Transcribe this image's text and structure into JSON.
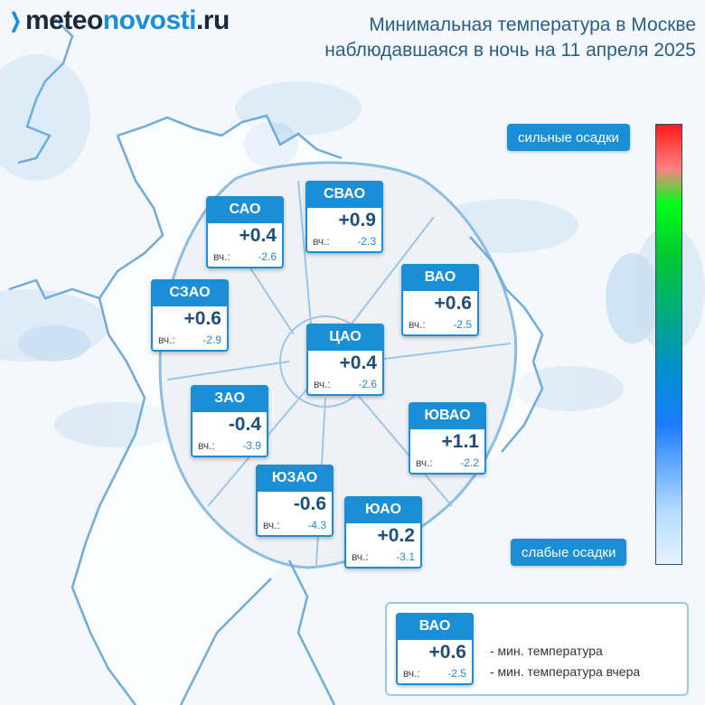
{
  "logo": {
    "part1": "meteo",
    "part2": "novosti",
    "part3": ".ru"
  },
  "title": {
    "line1": "Минимальная температура в Москве",
    "line2": "наблюдавшаяся в ночь на 11 апреля 2025"
  },
  "yesterday_label": "вч.:",
  "districts": [
    {
      "name": "САО",
      "temp": "+0.4",
      "yesterday": "-2.6"
    },
    {
      "name": "СВАО",
      "temp": "+0.9",
      "yesterday": "-2.3"
    },
    {
      "name": "ВАО",
      "temp": "+0.6",
      "yesterday": "-2.5"
    },
    {
      "name": "СЗАО",
      "temp": "+0.6",
      "yesterday": "-2.9"
    },
    {
      "name": "ЦАО",
      "temp": "+0.4",
      "yesterday": "-2.6"
    },
    {
      "name": "ЗАО",
      "temp": "-0.4",
      "yesterday": "-3.9"
    },
    {
      "name": "ЮВАО",
      "temp": "+1.1",
      "yesterday": "-2.2"
    },
    {
      "name": "ЮЗАО",
      "temp": "-0.6",
      "yesterday": "-4.3"
    },
    {
      "name": "ЮАО",
      "temp": "+0.2",
      "yesterday": "-3.1"
    }
  ],
  "precip_scale": {
    "top_label": "сильные осадки",
    "bottom_label": "слабые осадки",
    "colors": [
      "#ff1a1a",
      "#ff8080",
      "#00ff1a",
      "#00c832",
      "#0090c8",
      "#1a7cff",
      "#b4dcff",
      "#e6f2ff"
    ]
  },
  "legend": {
    "example": {
      "name": "ВАО",
      "temp": "+0.6",
      "yesterday": "-2.5"
    },
    "line1": "- мин. температура",
    "line2": "- мин. температура вчера"
  },
  "colors": {
    "accent": "#1a8fd8",
    "temp_text": "#1f4e7a",
    "title_text": "#2a5d88"
  }
}
